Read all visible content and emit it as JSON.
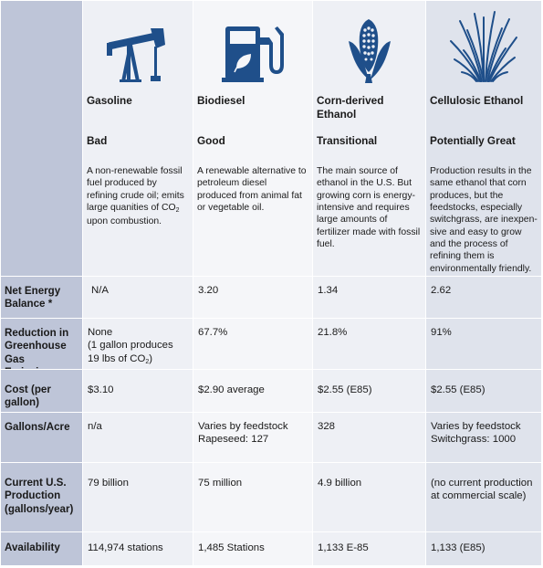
{
  "columns": [
    {
      "icon": "oil-pump-icon",
      "name": "Gasoline",
      "rating": "Bad",
      "description_pre": "A non-renewable fossil fuel produced by refining crude oil; emits large quanities of CO",
      "description_sub": "2",
      "description_post": " upon combustion."
    },
    {
      "icon": "biodiesel-pump-icon",
      "name": "Biodiesel",
      "rating": "Good",
      "description": "A renewable alternative to petroleum diesel produced from animal fat or vegetable oil."
    },
    {
      "icon": "corn-icon",
      "name": "Corn-derived Ethanol",
      "rating": "Transitional",
      "description": "The main source of ethanol in the U.S. But growing corn is energy-intensive and requires large amounts of fertilizer made with fossil fuel."
    },
    {
      "icon": "switchgrass-icon",
      "name": "Cellulosic Ethanol",
      "rating": "Potentially Great",
      "description": "Production results in the same ethanol that corn produces, but the feedstocks, especially switchgrass, are inexpen-sive and easy to grow and the process of refining them is environmentally friendly."
    }
  ],
  "rows": {
    "net_energy": {
      "label": "Net Energy Balance *",
      "values": [
        "N/A",
        "3.20",
        "1.34",
        "2.62"
      ]
    },
    "greenhouse": {
      "label": "Reduction in Greenhouse Gas Emissions",
      "gasoline_line1": "None",
      "gasoline_line2": "(1 gallon produces",
      "gasoline_line3_pre": "19 lbs of CO",
      "gasoline_line3_sub": "2",
      "gasoline_line3_post": ")",
      "values": [
        "67.7%",
        "21.8%",
        "91%"
      ]
    },
    "cost": {
      "label": "Cost (per gallon)",
      "values": [
        "$3.10",
        "$2.90 average",
        "$2.55 (E85)",
        "$2.55 (E85)"
      ]
    },
    "gallons_acre": {
      "label": "Gallons/Acre",
      "values": [
        "n/a",
        "Varies by feedstock",
        "328",
        "Varies by feedstock"
      ],
      "extra": [
        "",
        "Rapeseed: 127",
        "",
        "Switchgrass: 1000"
      ]
    },
    "production": {
      "label": "Current U.S. Production (gallons/year)",
      "values": [
        "79 billion",
        "75 million",
        "4.9 billion",
        "(no current production at commercial scale)"
      ]
    },
    "availability": {
      "label": "Availability",
      "values": [
        "114,974 stations",
        "1,485 Stations",
        "1,133 E-85",
        "1,133 (E85)"
      ]
    }
  },
  "colors": {
    "icon": "#1f4f8a",
    "label_bg": "#bec5d8"
  }
}
